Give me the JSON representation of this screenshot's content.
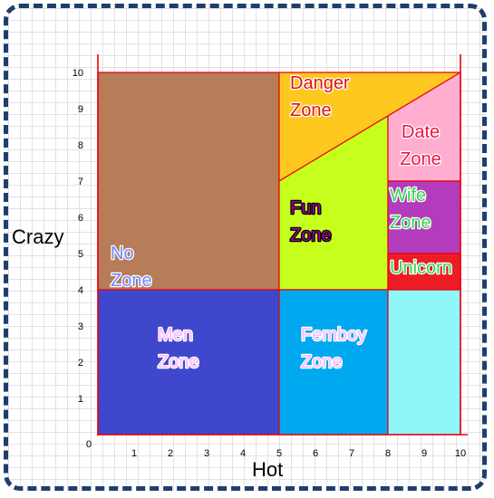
{
  "chart_data": {
    "type": "area",
    "title": "",
    "xlabel": "Hot",
    "ylabel": "Crazy",
    "xlim": [
      0,
      10
    ],
    "ylim": [
      0,
      10
    ],
    "x_ticks": [
      "0",
      "1",
      "2",
      "3",
      "4",
      "5",
      "6",
      "7",
      "8",
      "9",
      "10"
    ],
    "y_ticks": [
      "1",
      "2",
      "3",
      "4",
      "5",
      "6",
      "7",
      "8",
      "9",
      "10"
    ],
    "grid": true,
    "zones": [
      {
        "id": "no-zone",
        "label": [
          "No",
          "Zone"
        ],
        "polygon": [
          [
            0,
            4
          ],
          [
            5,
            4
          ],
          [
            5,
            10
          ],
          [
            0,
            10
          ]
        ],
        "fill": "#b77c58",
        "text_color": "#6f86ff",
        "label_at": [
          0.35,
          4.85
        ],
        "label_align": "start"
      },
      {
        "id": "danger-zone",
        "label": [
          "Danger",
          "Zone"
        ],
        "polygon": [
          [
            5,
            7
          ],
          [
            10,
            10
          ],
          [
            5,
            10
          ]
        ],
        "fill": "#ffc81e",
        "text_color": "#e11010",
        "label_at": [
          5.3,
          9.55
        ],
        "label_align": "start"
      },
      {
        "id": "fun-zone",
        "label": [
          "Fun",
          "Zone"
        ],
        "polygon": [
          [
            5,
            4
          ],
          [
            8,
            4
          ],
          [
            8,
            8.8
          ],
          [
            5,
            7
          ]
        ],
        "fill": "#c5ff1b",
        "text_color": "#a30096",
        "label_at": [
          5.3,
          6.1
        ],
        "label_align": "start"
      },
      {
        "id": "date-zone",
        "label": [
          "Date",
          "Zone"
        ],
        "polygon": [
          [
            8,
            7
          ],
          [
            10,
            7
          ],
          [
            10,
            10
          ],
          [
            8,
            8.8
          ]
        ],
        "fill": "#ffaed0",
        "text_color": "#ee1146",
        "label_at": [
          8.9,
          8.2
        ],
        "label_align": "middle"
      },
      {
        "id": "wife-zone",
        "label": [
          "Wife",
          "Zone"
        ],
        "polygon": [
          [
            8,
            5
          ],
          [
            10,
            5
          ],
          [
            10,
            7
          ],
          [
            8,
            7
          ]
        ],
        "fill": "#b43bbb",
        "text_color": "#2fd850",
        "label_at": [
          8.05,
          6.45
        ],
        "label_align": "start"
      },
      {
        "id": "unicorn",
        "label": [
          "Unicorn"
        ],
        "polygon": [
          [
            8,
            4
          ],
          [
            10,
            4
          ],
          [
            10,
            5
          ],
          [
            8,
            5
          ]
        ],
        "fill": "#ec1c24",
        "text_color": "#2fd850",
        "label_at": [
          8.05,
          4.45
        ],
        "label_align": "start"
      },
      {
        "id": "men-zone",
        "label": [
          "Men",
          "Zone"
        ],
        "polygon": [
          [
            0,
            0
          ],
          [
            5,
            0
          ],
          [
            5,
            4
          ],
          [
            0,
            4
          ]
        ],
        "fill": "#3f48cc",
        "text_color": "#ffb7ff",
        "label_at": [
          1.65,
          2.6
        ],
        "label_align": "start"
      },
      {
        "id": "femboy-zone",
        "label": [
          "Femboy",
          "Zone"
        ],
        "polygon": [
          [
            5,
            0
          ],
          [
            8,
            0
          ],
          [
            8,
            4
          ],
          [
            5,
            4
          ]
        ],
        "fill": "#00a8f0",
        "text_color": "#ffb7ff",
        "label_at": [
          5.6,
          2.6
        ],
        "label_align": "start"
      },
      {
        "id": "blank-zone",
        "label": [],
        "polygon": [
          [
            8,
            0
          ],
          [
            10,
            0
          ],
          [
            10,
            4
          ],
          [
            8,
            4
          ]
        ],
        "fill": "#8ff7f7",
        "text_color": "#ffffff",
        "label_at": [
          9,
          2
        ],
        "label_align": "middle"
      }
    ],
    "boundary_color": "#e8000f",
    "outline_colors": {
      "light": "#ffffff",
      "dark": "#000000"
    }
  }
}
